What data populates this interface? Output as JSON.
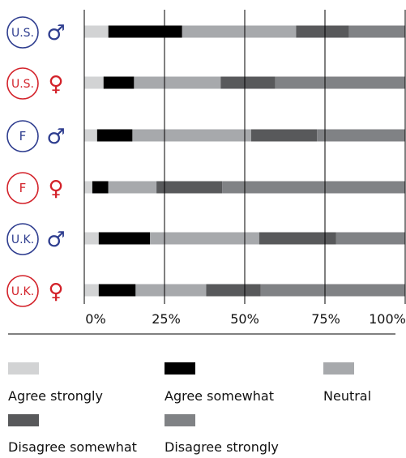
{
  "chart_data": {
    "type": "bar",
    "stacked": true,
    "orientation": "horizontal",
    "title": "",
    "xlabel": "",
    "ylabel": "",
    "xlim": [
      0,
      100
    ],
    "x_tick_labels": [
      "0%",
      "25%",
      "50%",
      "75%",
      "100%"
    ],
    "grid": true,
    "legend_position": "bottom",
    "categories": [
      {
        "badge": "U.S.",
        "symbol": "♂",
        "color": "#2e3d8f"
      },
      {
        "badge": "U.S.",
        "symbol": "♀",
        "color": "#d3222a"
      },
      {
        "badge": "F",
        "symbol": "♂",
        "color": "#2e3d8f"
      },
      {
        "badge": "F",
        "symbol": "♀",
        "color": "#d3222a"
      },
      {
        "badge": "U.K.",
        "symbol": "♂",
        "color": "#2e3d8f"
      },
      {
        "badge": "U.K.",
        "symbol": "♀",
        "color": "#d3222a"
      }
    ],
    "series": [
      {
        "name": "Agree strongly",
        "color": "#d2d3d4",
        "values": [
          7.5,
          6,
          4,
          2.5,
          4.5,
          4.5
        ]
      },
      {
        "name": "Agree somewhat",
        "color": "#000000",
        "values": [
          23,
          9.5,
          11,
          5,
          16,
          11.5
        ]
      },
      {
        "name": "Neutral",
        "color": "#a7a9ac",
        "values": [
          35.5,
          27,
          37,
          15,
          34,
          22
        ]
      },
      {
        "name": "Disagree somewhat",
        "color": "#58595b",
        "values": [
          16.5,
          17,
          20.5,
          20.5,
          24,
          17
        ]
      },
      {
        "name": "Disagree strongly",
        "color": "#808285",
        "values": [
          17.5,
          40.5,
          27.5,
          57,
          21.5,
          45
        ]
      }
    ]
  }
}
